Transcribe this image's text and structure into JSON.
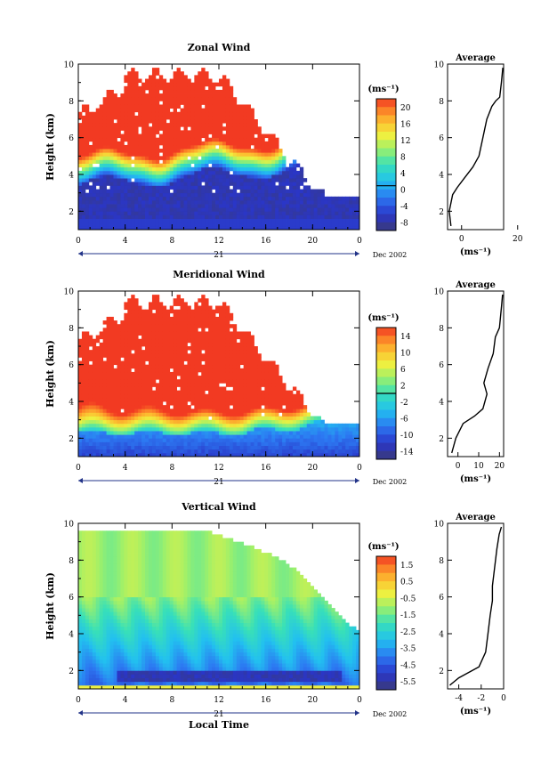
{
  "chart_data": [
    {
      "type": "heatmap",
      "title": "Zonal Wind",
      "ylabel": "Height (km)",
      "xlim": [
        0,
        24
      ],
      "ylim": [
        1,
        10
      ],
      "x_ticks": [
        "0",
        "4",
        "8",
        "12",
        "16",
        "20",
        "0"
      ],
      "y_ticks": [
        "2",
        "4",
        "6",
        "8",
        "10"
      ],
      "date_day": "21",
      "date_label": "Dec 2002",
      "colorbar": {
        "unit": "(ms⁻¹)",
        "ticks": [
          "20",
          "16",
          "12",
          "8",
          "4",
          "0",
          "-4",
          "-8"
        ],
        "range": [
          -10,
          22
        ]
      },
      "average": {
        "title": "Average",
        "xlabel": "(ms⁻¹)",
        "x_ticks": [
          "0",
          "20"
        ],
        "xlim": [
          -5,
          15
        ],
        "profile": [
          [
            -3.8,
            1.2
          ],
          [
            -4.4,
            2.0
          ],
          [
            -3.2,
            2.9
          ],
          [
            -1.5,
            3.3
          ],
          [
            1.0,
            3.8
          ],
          [
            4.0,
            4.4
          ],
          [
            6.2,
            5.0
          ],
          [
            7.6,
            6.0
          ],
          [
            9.0,
            7.0
          ],
          [
            10.8,
            7.7
          ],
          [
            12.2,
            8.0
          ],
          [
            13.6,
            8.2
          ],
          [
            14.2,
            9.0
          ],
          [
            14.7,
            9.8
          ]
        ]
      }
    },
    {
      "type": "heatmap",
      "title": "Meridional Wind",
      "ylabel": "Height (km)",
      "xlim": [
        0,
        24
      ],
      "ylim": [
        1,
        10
      ],
      "x_ticks": [
        "0",
        "4",
        "8",
        "12",
        "16",
        "20",
        "0"
      ],
      "y_ticks": [
        "2",
        "4",
        "6",
        "8",
        "10"
      ],
      "date_day": "21",
      "date_label": "Dec 2002",
      "colorbar": {
        "unit": "(ms⁻¹)",
        "ticks": [
          "14",
          "10",
          "6",
          "2",
          "-2",
          "-6",
          "-10",
          "-14"
        ],
        "range": [
          -16,
          16
        ]
      },
      "average": {
        "title": "Average",
        "xlabel": "(ms⁻¹)",
        "x_ticks": [
          "0",
          "10",
          "20"
        ],
        "xlim": [
          -5,
          22
        ],
        "profile": [
          [
            -3.0,
            1.2
          ],
          [
            -1.0,
            2.0
          ],
          [
            2.5,
            2.8
          ],
          [
            8.0,
            3.2
          ],
          [
            12.0,
            3.6
          ],
          [
            14.0,
            4.4
          ],
          [
            12.5,
            5.0
          ],
          [
            14.5,
            5.8
          ],
          [
            17.0,
            6.6
          ],
          [
            18.0,
            7.5
          ],
          [
            20.0,
            8.0
          ],
          [
            20.5,
            8.6
          ],
          [
            21.0,
            9.2
          ],
          [
            21.5,
            9.8
          ]
        ]
      }
    },
    {
      "type": "heatmap",
      "title": "Vertical Wind",
      "ylabel": "Height (km)",
      "xlabel": "Local Time",
      "xlim": [
        0,
        24
      ],
      "ylim": [
        1,
        10
      ],
      "x_ticks": [
        "0",
        "4",
        "8",
        "12",
        "16",
        "20",
        "0"
      ],
      "y_ticks": [
        "2",
        "4",
        "6",
        "8",
        "10"
      ],
      "date_day": "21",
      "date_label": "Dec 2002",
      "colorbar": {
        "unit": "(ms⁻¹)",
        "ticks": [
          "1.5",
          "0.5",
          "-0.5",
          "-1.5",
          "-2.5",
          "-3.5",
          "-4.5",
          "-5.5"
        ],
        "range": [
          -6.5,
          2.0
        ]
      },
      "average": {
        "title": "Average",
        "xlabel": "(ms⁻¹)",
        "x_ticks": [
          "-4",
          "-2",
          "0"
        ],
        "xlim": [
          -5,
          0
        ],
        "profile": [
          [
            -4.8,
            1.2
          ],
          [
            -4.0,
            1.6
          ],
          [
            -2.2,
            2.2
          ],
          [
            -1.6,
            3.0
          ],
          [
            -1.4,
            4.0
          ],
          [
            -1.2,
            5.0
          ],
          [
            -1.0,
            5.8
          ],
          [
            -1.0,
            6.6
          ],
          [
            -0.8,
            7.6
          ],
          [
            -0.6,
            8.6
          ],
          [
            -0.4,
            9.4
          ],
          [
            -0.2,
            9.8
          ]
        ]
      }
    }
  ]
}
